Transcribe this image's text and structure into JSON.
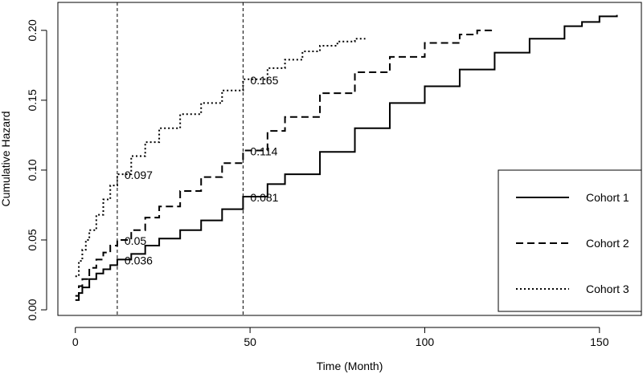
{
  "chart_data": {
    "type": "line",
    "title": "",
    "xlabel": "Time (Month)",
    "ylabel": "Cumulative Hazard",
    "xlim": [
      -5,
      162
    ],
    "ylim": [
      -0.004,
      0.22
    ],
    "xticks": [
      0,
      50,
      100,
      150
    ],
    "yticks": [
      0.0,
      0.05,
      0.1,
      0.15,
      0.2
    ],
    "ytick_labels": [
      "0.00",
      "0.05",
      "0.10",
      "0.15",
      "0.20"
    ],
    "grid": false,
    "legend_position": "bottom-right",
    "reference_lines_x": [
      12,
      48
    ],
    "series": [
      {
        "name": "Cohort 1",
        "line_style": "solid",
        "x": [
          0,
          1,
          2,
          4,
          6,
          8,
          10,
          12,
          16,
          20,
          24,
          30,
          36,
          42,
          48,
          55,
          60,
          70,
          80,
          90,
          100,
          110,
          120,
          130,
          140,
          145,
          150,
          155
        ],
        "y": [
          0.007,
          0.012,
          0.016,
          0.022,
          0.026,
          0.029,
          0.032,
          0.036,
          0.04,
          0.046,
          0.051,
          0.057,
          0.064,
          0.072,
          0.081,
          0.09,
          0.097,
          0.113,
          0.13,
          0.148,
          0.16,
          0.172,
          0.184,
          0.194,
          0.203,
          0.206,
          0.21,
          0.211
        ]
      },
      {
        "name": "Cohort 2",
        "line_style": "dashed",
        "x": [
          0,
          1,
          2,
          4,
          6,
          8,
          10,
          12,
          16,
          20,
          24,
          30,
          36,
          42,
          48,
          55,
          60,
          70,
          80,
          90,
          100,
          110,
          115,
          119
        ],
        "y": [
          0.01,
          0.017,
          0.022,
          0.03,
          0.036,
          0.041,
          0.046,
          0.05,
          0.057,
          0.066,
          0.074,
          0.085,
          0.095,
          0.105,
          0.114,
          0.128,
          0.138,
          0.155,
          0.17,
          0.181,
          0.191,
          0.197,
          0.2,
          0.201
        ]
      },
      {
        "name": "Cohort 3",
        "line_style": "dotted",
        "x": [
          0,
          1,
          2,
          3,
          4,
          6,
          8,
          10,
          12,
          16,
          20,
          24,
          30,
          36,
          42,
          48,
          55,
          60,
          65,
          70,
          75,
          80,
          83
        ],
        "y": [
          0.024,
          0.035,
          0.043,
          0.05,
          0.057,
          0.068,
          0.079,
          0.089,
          0.097,
          0.11,
          0.12,
          0.13,
          0.14,
          0.148,
          0.157,
          0.165,
          0.173,
          0.179,
          0.185,
          0.189,
          0.192,
          0.194,
          0.194
        ]
      }
    ],
    "annotations": [
      {
        "x": 12,
        "y": 0.097,
        "text": "0.097"
      },
      {
        "x": 12,
        "y": 0.05,
        "text": "0.05"
      },
      {
        "x": 12,
        "y": 0.036,
        "text": "0.036"
      },
      {
        "x": 48,
        "y": 0.165,
        "text": "0.165"
      },
      {
        "x": 48,
        "y": 0.114,
        "text": "0.114"
      },
      {
        "x": 48,
        "y": 0.081,
        "text": "0.081"
      }
    ]
  }
}
